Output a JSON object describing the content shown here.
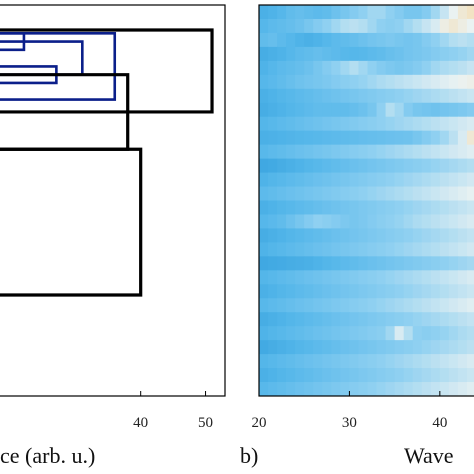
{
  "chart_data": [
    {
      "type": "dendrogram",
      "panel_label": "",
      "xlabel": "ce (arb. u.)",
      "ylabel": "",
      "xticks": [
        40,
        50
      ],
      "xlim": [
        18,
        53
      ],
      "leaves": 28,
      "links": [
        {
          "height": 22,
          "from": [
            0.5,
            1.5
          ],
          "to": 1.0,
          "cluster": "blue"
        },
        {
          "height": 27,
          "from": [
            2.5,
            3.5
          ],
          "to": 3.0,
          "cluster": "blue"
        },
        {
          "height": 31,
          "from": [
            1.0,
            3.0
          ],
          "to": 2.0,
          "cluster": "blue"
        },
        {
          "height": 36,
          "from": [
            0.5,
            4.5
          ],
          "to": 2.5,
          "cluster": "blue"
        },
        {
          "height": 38,
          "from": [
            3.0,
            7.5
          ],
          "to": 5.25,
          "cluster": "black"
        },
        {
          "height": 51,
          "from": [
            0.3,
            5.25
          ],
          "to": 2.8,
          "cluster": "black"
        },
        {
          "height": 40,
          "from": [
            7.5,
            16.3
          ],
          "to": 11.9,
          "cluster": "black"
        }
      ],
      "colors": {
        "blue": "#0b1f8a",
        "black": "#000000"
      }
    },
    {
      "type": "heatmap",
      "panel_label": "b)",
      "xlabel": "Wave",
      "xticks": [
        20,
        30,
        40
      ],
      "xlim": [
        20,
        44
      ],
      "rows": 28,
      "columns": 24,
      "colormap": [
        "#1f92d6",
        "#56b7ea",
        "#8fd0f1",
        "#eaf2f2",
        "#f7d9a6"
      ],
      "values": [
        [
          0.2,
          0.22,
          0.25,
          0.3,
          0.32,
          0.3,
          0.28,
          0.3,
          0.35,
          0.4,
          0.45,
          0.5,
          0.55,
          0.55,
          0.5,
          0.45,
          0.4,
          0.4,
          0.45,
          0.55,
          0.65,
          0.75,
          0.85,
          0.9
        ],
        [
          0.25,
          0.28,
          0.3,
          0.32,
          0.35,
          0.4,
          0.45,
          0.5,
          0.55,
          0.6,
          0.62,
          0.6,
          0.55,
          0.5,
          0.48,
          0.5,
          0.55,
          0.6,
          0.65,
          0.7,
          0.8,
          0.85,
          0.8,
          0.75
        ],
        [
          0.3,
          0.32,
          0.28,
          0.25,
          0.22,
          0.2,
          0.22,
          0.25,
          0.28,
          0.3,
          0.32,
          0.35,
          0.38,
          0.4,
          0.42,
          0.4,
          0.38,
          0.4,
          0.45,
          0.5,
          0.55,
          0.6,
          0.62,
          0.6
        ],
        [
          0.18,
          0.2,
          0.22,
          0.25,
          0.28,
          0.3,
          0.32,
          0.3,
          0.28,
          0.26,
          0.25,
          0.26,
          0.28,
          0.3,
          0.33,
          0.35,
          0.38,
          0.4,
          0.42,
          0.45,
          0.48,
          0.5,
          0.52,
          0.55
        ],
        [
          0.22,
          0.25,
          0.28,
          0.3,
          0.32,
          0.35,
          0.4,
          0.45,
          0.5,
          0.55,
          0.6,
          0.55,
          0.5,
          0.45,
          0.42,
          0.4,
          0.42,
          0.45,
          0.5,
          0.55,
          0.58,
          0.6,
          0.62,
          0.65
        ],
        [
          0.25,
          0.27,
          0.3,
          0.33,
          0.36,
          0.38,
          0.4,
          0.42,
          0.45,
          0.48,
          0.5,
          0.52,
          0.55,
          0.58,
          0.6,
          0.62,
          0.64,
          0.66,
          0.68,
          0.7,
          0.72,
          0.74,
          0.76,
          0.78
        ],
        [
          0.2,
          0.22,
          0.24,
          0.26,
          0.28,
          0.3,
          0.32,
          0.34,
          0.36,
          0.38,
          0.4,
          0.42,
          0.44,
          0.46,
          0.48,
          0.5,
          0.52,
          0.54,
          0.56,
          0.58,
          0.6,
          0.62,
          0.64,
          0.66
        ],
        [
          0.18,
          0.2,
          0.22,
          0.24,
          0.26,
          0.28,
          0.3,
          0.3,
          0.3,
          0.3,
          0.32,
          0.35,
          0.4,
          0.5,
          0.6,
          0.55,
          0.45,
          0.4,
          0.38,
          0.36,
          0.38,
          0.4,
          0.42,
          0.45
        ],
        [
          0.24,
          0.26,
          0.28,
          0.3,
          0.32,
          0.34,
          0.36,
          0.38,
          0.4,
          0.42,
          0.44,
          0.46,
          0.48,
          0.5,
          0.52,
          0.54,
          0.56,
          0.58,
          0.6,
          0.62,
          0.64,
          0.66,
          0.68,
          0.7
        ],
        [
          0.2,
          0.21,
          0.22,
          0.23,
          0.24,
          0.25,
          0.26,
          0.27,
          0.28,
          0.29,
          0.3,
          0.31,
          0.32,
          0.33,
          0.34,
          0.35,
          0.36,
          0.4,
          0.45,
          0.5,
          0.55,
          0.62,
          0.7,
          0.85
        ],
        [
          0.26,
          0.28,
          0.3,
          0.32,
          0.34,
          0.36,
          0.38,
          0.4,
          0.42,
          0.44,
          0.46,
          0.48,
          0.5,
          0.52,
          0.54,
          0.56,
          0.58,
          0.6,
          0.62,
          0.64,
          0.66,
          0.68,
          0.7,
          0.72
        ],
        [
          0.15,
          0.16,
          0.18,
          0.2,
          0.22,
          0.24,
          0.26,
          0.28,
          0.3,
          0.32,
          0.34,
          0.36,
          0.38,
          0.4,
          0.42,
          0.44,
          0.46,
          0.48,
          0.5,
          0.52,
          0.54,
          0.56,
          0.58,
          0.6
        ],
        [
          0.22,
          0.24,
          0.26,
          0.28,
          0.3,
          0.32,
          0.34,
          0.36,
          0.38,
          0.4,
          0.42,
          0.44,
          0.46,
          0.48,
          0.5,
          0.52,
          0.54,
          0.56,
          0.58,
          0.6,
          0.62,
          0.64,
          0.66,
          0.68
        ],
        [
          0.28,
          0.3,
          0.32,
          0.34,
          0.36,
          0.38,
          0.4,
          0.42,
          0.44,
          0.46,
          0.48,
          0.5,
          0.52,
          0.54,
          0.56,
          0.58,
          0.6,
          0.62,
          0.64,
          0.66,
          0.68,
          0.7,
          0.72,
          0.74
        ],
        [
          0.2,
          0.22,
          0.24,
          0.26,
          0.28,
          0.3,
          0.32,
          0.34,
          0.36,
          0.38,
          0.4,
          0.42,
          0.44,
          0.46,
          0.48,
          0.5,
          0.52,
          0.54,
          0.56,
          0.58,
          0.6,
          0.62,
          0.64,
          0.66
        ],
        [
          0.25,
          0.27,
          0.3,
          0.35,
          0.4,
          0.45,
          0.5,
          0.48,
          0.45,
          0.42,
          0.4,
          0.42,
          0.45,
          0.48,
          0.5,
          0.52,
          0.55,
          0.58,
          0.6,
          0.62,
          0.64,
          0.66,
          0.68,
          0.7
        ],
        [
          0.18,
          0.2,
          0.22,
          0.24,
          0.26,
          0.28,
          0.3,
          0.32,
          0.34,
          0.36,
          0.38,
          0.4,
          0.42,
          0.44,
          0.46,
          0.48,
          0.5,
          0.52,
          0.54,
          0.56,
          0.58,
          0.6,
          0.62,
          0.64
        ],
        [
          0.22,
          0.24,
          0.26,
          0.28,
          0.3,
          0.32,
          0.34,
          0.36,
          0.38,
          0.4,
          0.42,
          0.44,
          0.46,
          0.48,
          0.5,
          0.52,
          0.54,
          0.56,
          0.58,
          0.6,
          0.62,
          0.64,
          0.66,
          0.68
        ],
        [
          0.15,
          0.16,
          0.17,
          0.18,
          0.19,
          0.2,
          0.22,
          0.24,
          0.26,
          0.28,
          0.3,
          0.32,
          0.34,
          0.36,
          0.38,
          0.4,
          0.42,
          0.44,
          0.46,
          0.48,
          0.5,
          0.52,
          0.54,
          0.56
        ],
        [
          0.24,
          0.26,
          0.28,
          0.3,
          0.32,
          0.34,
          0.36,
          0.38,
          0.4,
          0.42,
          0.44,
          0.46,
          0.48,
          0.5,
          0.52,
          0.54,
          0.56,
          0.58,
          0.6,
          0.62,
          0.64,
          0.66,
          0.68,
          0.7
        ],
        [
          0.2,
          0.22,
          0.24,
          0.26,
          0.28,
          0.3,
          0.32,
          0.34,
          0.36,
          0.38,
          0.4,
          0.42,
          0.44,
          0.46,
          0.48,
          0.5,
          0.52,
          0.54,
          0.56,
          0.58,
          0.6,
          0.62,
          0.64,
          0.66
        ],
        [
          0.26,
          0.28,
          0.3,
          0.32,
          0.34,
          0.36,
          0.38,
          0.4,
          0.42,
          0.44,
          0.46,
          0.48,
          0.5,
          0.52,
          0.54,
          0.56,
          0.58,
          0.6,
          0.62,
          0.64,
          0.66,
          0.68,
          0.7,
          0.72
        ],
        [
          0.18,
          0.2,
          0.22,
          0.24,
          0.26,
          0.28,
          0.3,
          0.32,
          0.34,
          0.36,
          0.38,
          0.4,
          0.42,
          0.44,
          0.46,
          0.48,
          0.5,
          0.52,
          0.54,
          0.56,
          0.58,
          0.6,
          0.62,
          0.64
        ],
        [
          0.22,
          0.24,
          0.26,
          0.28,
          0.3,
          0.32,
          0.34,
          0.36,
          0.38,
          0.4,
          0.42,
          0.44,
          0.46,
          0.48,
          0.55,
          0.7,
          0.6,
          0.5,
          0.48,
          0.5,
          0.52,
          0.55,
          0.58,
          0.6
        ],
        [
          0.16,
          0.18,
          0.2,
          0.22,
          0.24,
          0.26,
          0.28,
          0.3,
          0.32,
          0.34,
          0.36,
          0.38,
          0.4,
          0.42,
          0.44,
          0.46,
          0.48,
          0.5,
          0.52,
          0.54,
          0.56,
          0.58,
          0.6,
          0.62
        ],
        [
          0.24,
          0.26,
          0.28,
          0.3,
          0.32,
          0.34,
          0.36,
          0.38,
          0.4,
          0.42,
          0.44,
          0.46,
          0.48,
          0.5,
          0.52,
          0.54,
          0.56,
          0.58,
          0.6,
          0.62,
          0.64,
          0.66,
          0.68,
          0.7
        ],
        [
          0.2,
          0.22,
          0.24,
          0.26,
          0.28,
          0.3,
          0.32,
          0.34,
          0.36,
          0.38,
          0.4,
          0.42,
          0.44,
          0.46,
          0.48,
          0.5,
          0.52,
          0.54,
          0.56,
          0.58,
          0.6,
          0.62,
          0.64,
          0.66
        ],
        [
          0.26,
          0.28,
          0.3,
          0.32,
          0.34,
          0.36,
          0.38,
          0.4,
          0.42,
          0.44,
          0.46,
          0.48,
          0.5,
          0.52,
          0.54,
          0.56,
          0.58,
          0.6,
          0.62,
          0.64,
          0.66,
          0.68,
          0.7,
          0.72
        ]
      ]
    }
  ]
}
